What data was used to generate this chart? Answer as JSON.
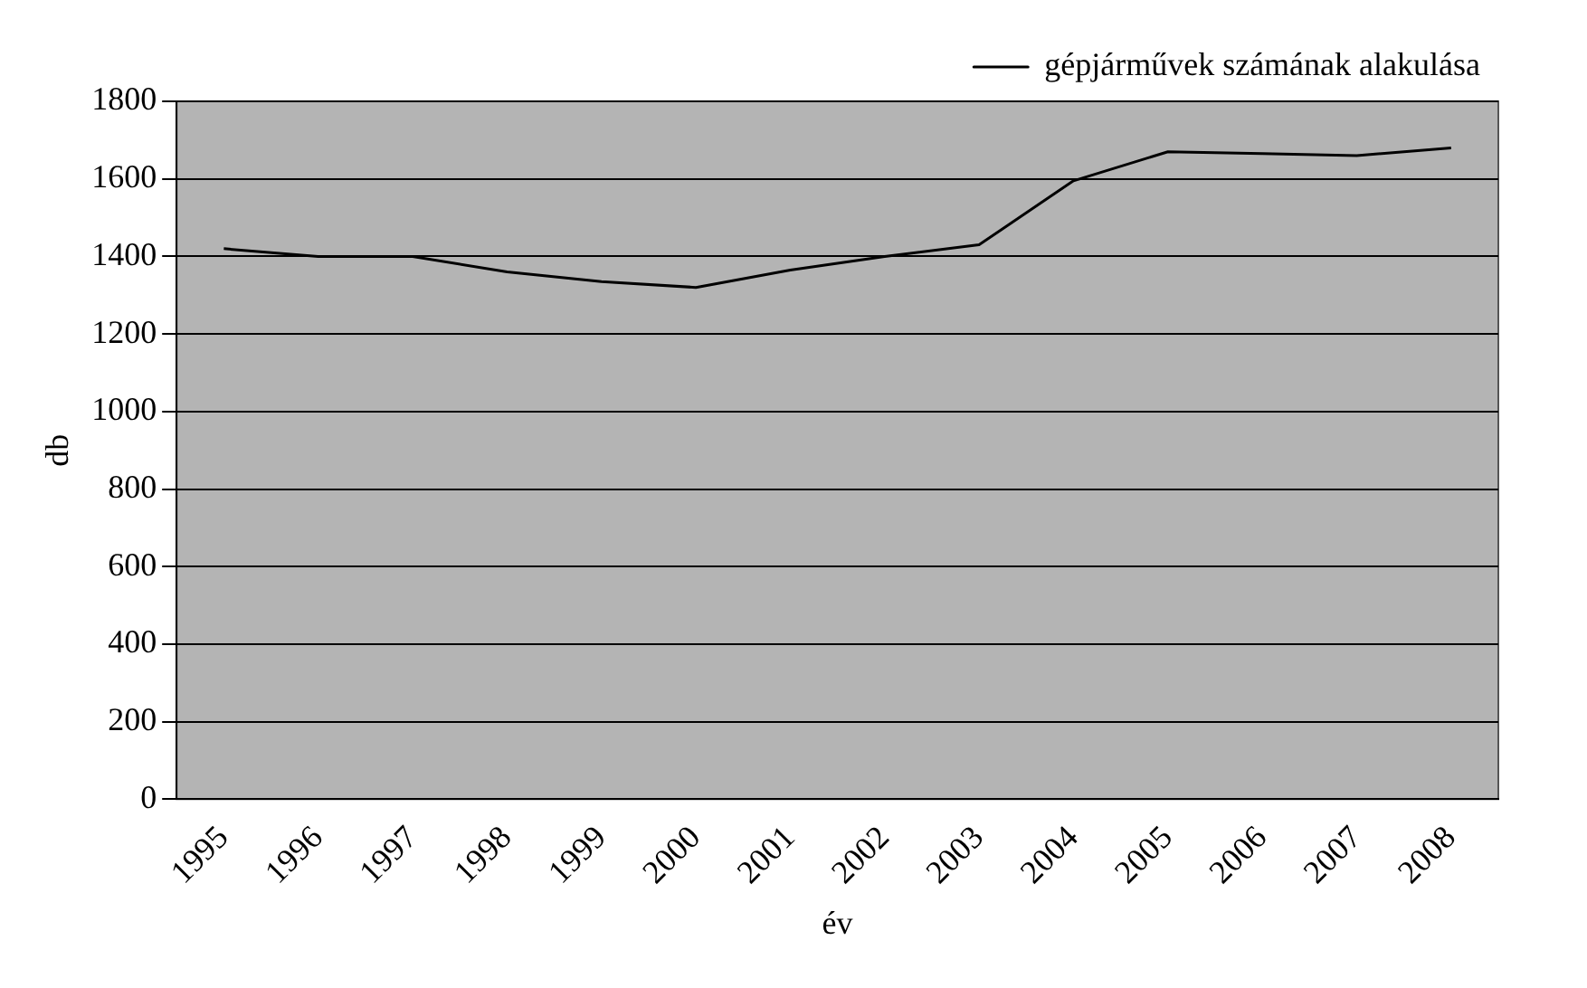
{
  "chart_data": {
    "type": "line",
    "xlabel": "év",
    "ylabel": "db",
    "categories": [
      "1995",
      "1996",
      "1997",
      "1998",
      "1999",
      "2000",
      "2001",
      "2002",
      "2003",
      "2004",
      "2005",
      "2006",
      "2007",
      "2008"
    ],
    "series": [
      {
        "name": "gépjárművek számának alakulása",
        "color": "#000000",
        "values": [
          1420,
          1400,
          1400,
          1360,
          1335,
          1320,
          1365,
          1400,
          1430,
          1595,
          1670,
          1665,
          1660,
          1680
        ]
      }
    ],
    "ylim": [
      0,
      1800
    ],
    "yticks": [
      0,
      200,
      400,
      600,
      800,
      1000,
      1200,
      1400,
      1600,
      1800
    ],
    "grid": "y",
    "legend": "top right",
    "marker": "none",
    "line_style": "solid"
  }
}
